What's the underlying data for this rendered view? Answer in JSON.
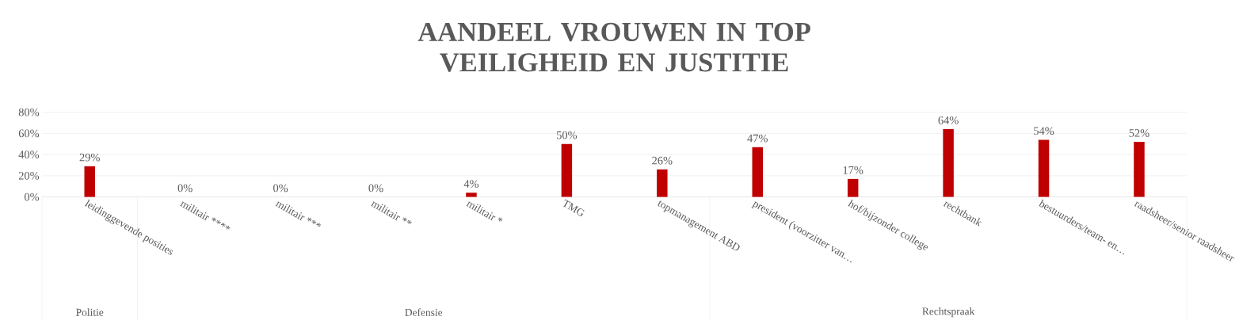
{
  "chart_data": {
    "type": "bar",
    "title": "AANDEEL VROUWEN IN TOP VEILIGHEID EN JUSTITIE",
    "categories": [
      "leidinggevende posities",
      "militair ****",
      "militair ***",
      "militair **",
      "militair *",
      "TMG",
      "topmanagement ABD",
      "president (voorzitter van…",
      "hof/bijzonder college",
      "rechtbank",
      "bestuurders/team- en…",
      "raadsheer/senior raadsheer"
    ],
    "values": [
      29,
      0,
      0,
      0,
      4,
      50,
      26,
      47,
      17,
      64,
      54,
      52
    ],
    "value_labels": [
      "29%",
      "0%",
      "0%",
      "0%",
      "4%",
      "50%",
      "26%",
      "47%",
      "17%",
      "64%",
      "54%",
      "52%"
    ],
    "color": "#c00000",
    "ylim": [
      0,
      80
    ],
    "yticks": [
      {
        "value": 0,
        "label": "0%"
      },
      {
        "value": 20,
        "label": "20%"
      },
      {
        "value": 40,
        "label": "40%"
      },
      {
        "value": 60,
        "label": "60%"
      },
      {
        "value": 80,
        "label": "80%"
      }
    ],
    "grid": "y",
    "annotations": [
      "Politie",
      "Defensie",
      "Rechtspraak"
    ]
  }
}
